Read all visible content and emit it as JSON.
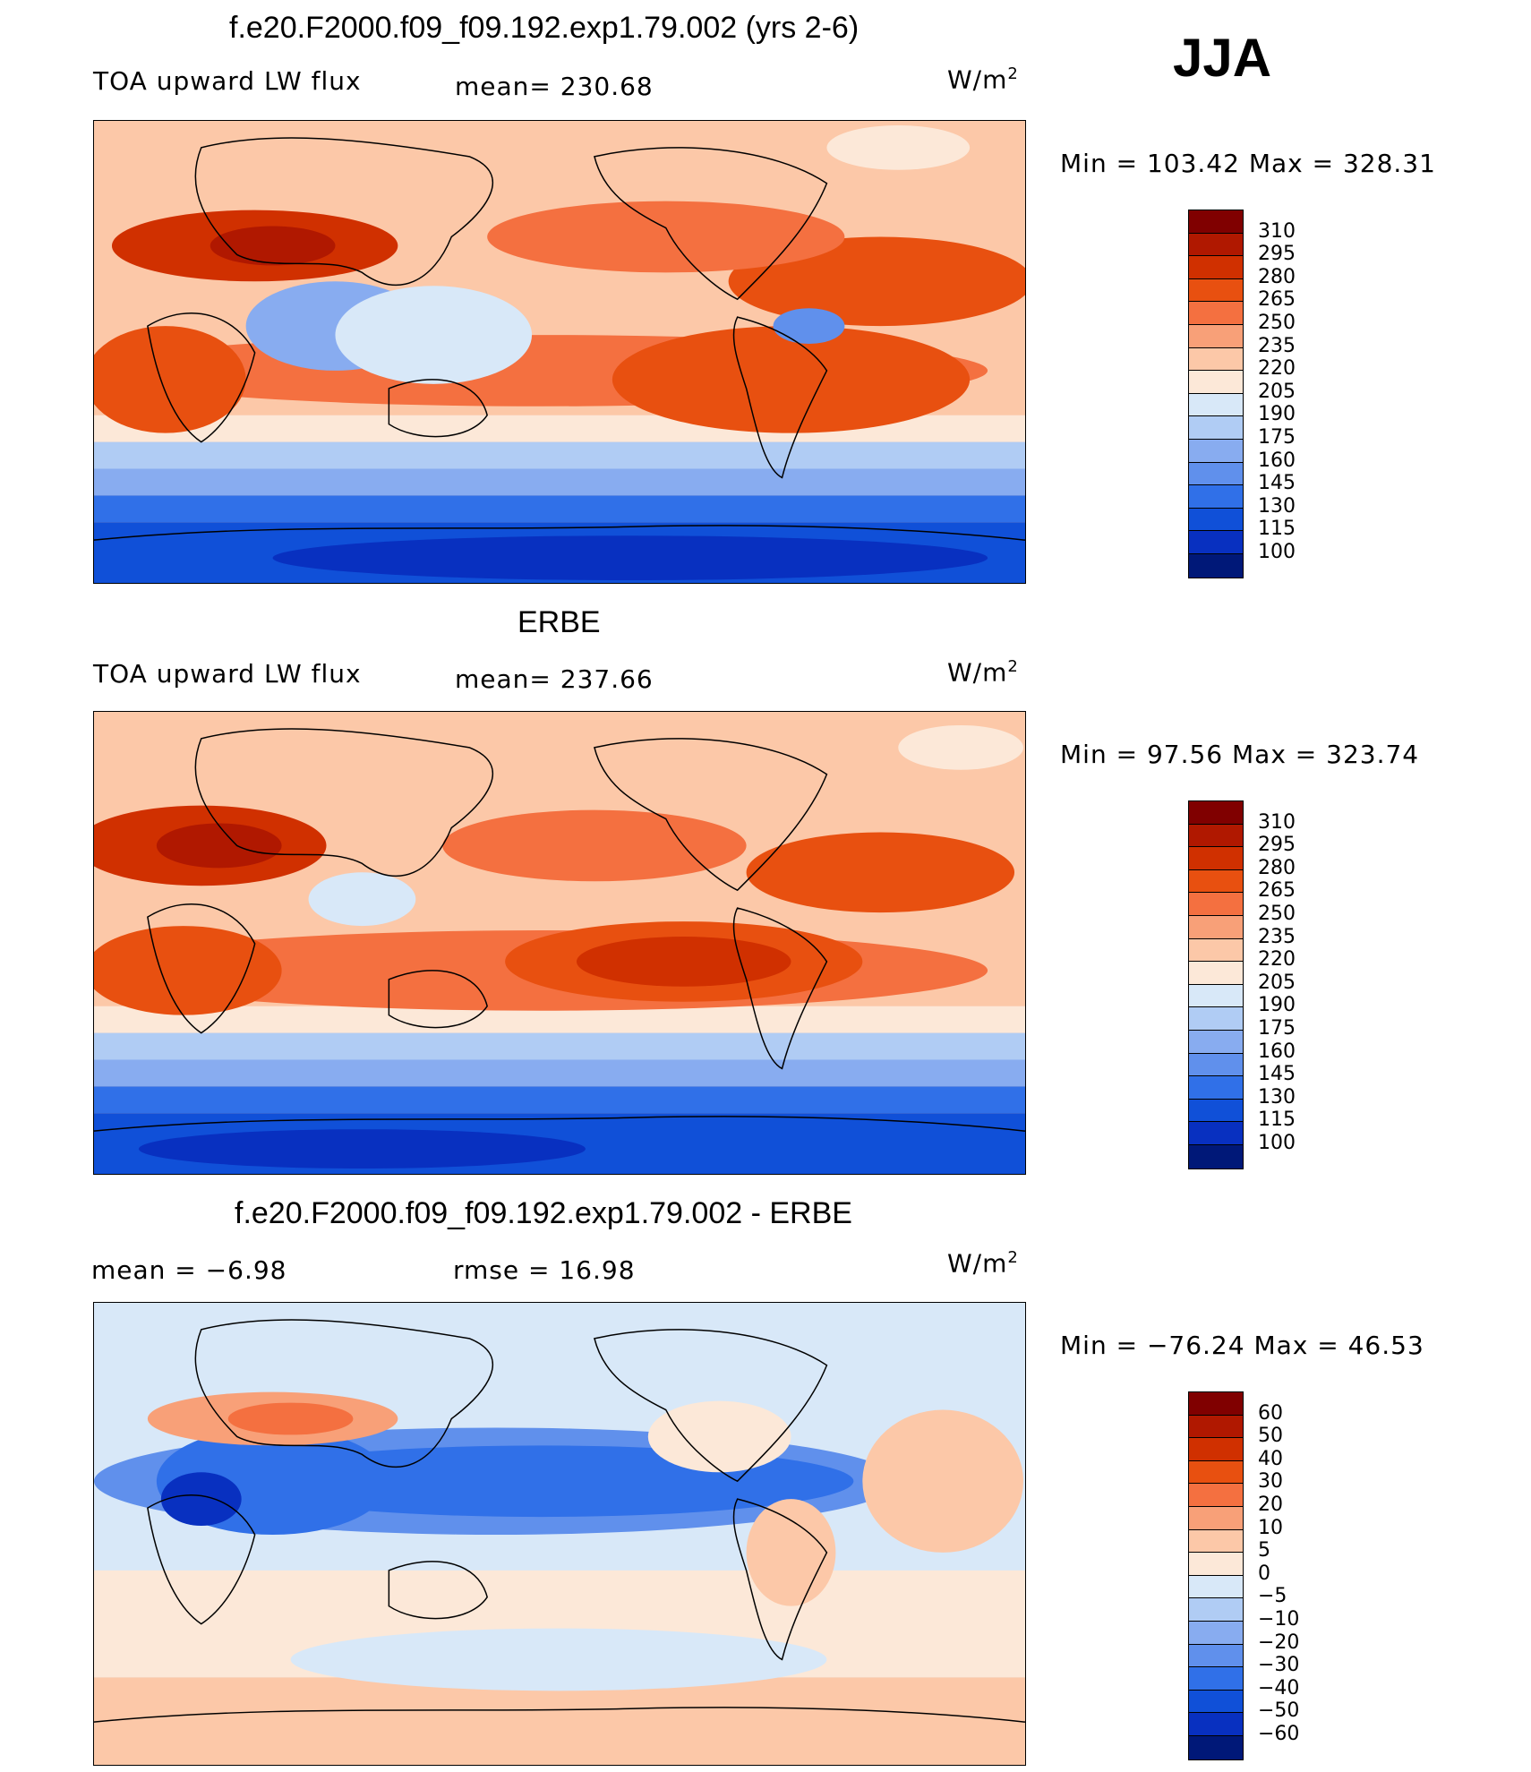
{
  "season": "JJA",
  "panels": [
    {
      "title": "f.e20.F2000.f09_f09.192.exp1.79.002 (yrs 2-6)",
      "left_label": "TOA upward LW flux",
      "center_label": "mean=  230.68",
      "units": "W/m",
      "units_sup": "2",
      "minmax": "Min  =  103.42  Max  =  328.31",
      "colorbar_labels": [
        "310",
        "295",
        "280",
        "265",
        "250",
        "235",
        "220",
        "205",
        "190",
        "175",
        "160",
        "145",
        "130",
        "115",
        "100"
      ],
      "colors": [
        "#800000",
        "#b01800",
        "#d03000",
        "#e85010",
        "#f47040",
        "#f8a078",
        "#fcc8a8",
        "#fce8d8",
        "#d8e8f8",
        "#b0ccf4",
        "#88acf0",
        "#6090ec",
        "#3070e8",
        "#1050d8",
        "#0830c0",
        "#001878"
      ]
    },
    {
      "title": "ERBE",
      "left_label": "TOA upward LW flux",
      "center_label": "mean=  237.66",
      "units": "W/m",
      "units_sup": "2",
      "minmax": "Min  =    97.56  Max  =  323.74",
      "colorbar_labels": [
        "310",
        "295",
        "280",
        "265",
        "250",
        "235",
        "220",
        "205",
        "190",
        "175",
        "160",
        "145",
        "130",
        "115",
        "100"
      ],
      "colors": [
        "#800000",
        "#b01800",
        "#d03000",
        "#e85010",
        "#f47040",
        "#f8a078",
        "#fcc8a8",
        "#fce8d8",
        "#d8e8f8",
        "#b0ccf4",
        "#88acf0",
        "#6090ec",
        "#3070e8",
        "#1050d8",
        "#0830c0",
        "#001878"
      ]
    },
    {
      "title": "f.e20.F2000.f09_f09.192.exp1.79.002 - ERBE",
      "left_label": "mean  =    −6.98",
      "center_label": "rmse  =    16.98",
      "units": "W/m",
      "units_sup": "2",
      "minmax": "Min  =  −76.24  Max  =    46.53",
      "colorbar_labels": [
        "60",
        "50",
        "40",
        "30",
        "20",
        "10",
        "5",
        "0",
        "−5",
        "−10",
        "−20",
        "−30",
        "−40",
        "−50",
        "−60"
      ],
      "colors": [
        "#800000",
        "#b01800",
        "#d03000",
        "#e85010",
        "#f47040",
        "#f8a078",
        "#fcc8a8",
        "#fce8d8",
        "#d8e8f8",
        "#b0ccf4",
        "#88acf0",
        "#6090ec",
        "#3070e8",
        "#1050d8",
        "#0830c0",
        "#001878"
      ]
    }
  ]
}
